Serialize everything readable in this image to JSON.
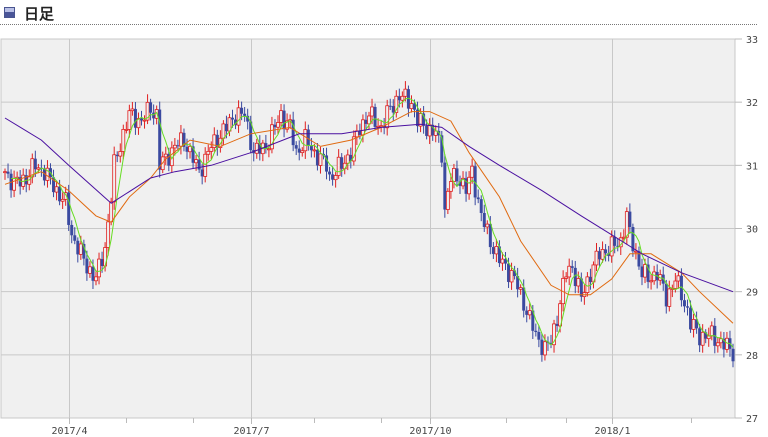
{
  "header": {
    "title": "日足",
    "icon": "chart-square-icon"
  },
  "chart_data": {
    "type": "candlestick",
    "title": "日足",
    "xlabel": "",
    "ylabel": "",
    "ylim": [
      27,
      33
    ],
    "y_ticks": [
      "27",
      "28",
      "29",
      "30",
      "31",
      "32",
      "33"
    ],
    "x_domain": [
      0,
      240
    ],
    "x_ticks": [
      {
        "label": "2017/4",
        "idx": 21
      },
      {
        "label": "2017/7",
        "idx": 81
      },
      {
        "label": "2017/10",
        "idx": 140
      },
      {
        "label": "2018/1",
        "idx": 200
      }
    ],
    "x_minor_ticks": [
      40,
      62,
      102,
      124,
      165,
      185,
      226
    ],
    "grid": true,
    "colors": {
      "up": "#e02020",
      "down": "#3a4aa0",
      "ma_short": "#66dd22",
      "ma_mid": "#e06a10",
      "ma_long": "#4a10a0",
      "grid": "#c8c8c8",
      "plot_bg": "#f0f0f0"
    },
    "close_path": [
      [
        0,
        30.9
      ],
      [
        3,
        30.7
      ],
      [
        7,
        30.8
      ],
      [
        10,
        31.0
      ],
      [
        13,
        30.9
      ],
      [
        17,
        30.6
      ],
      [
        20,
        30.4
      ],
      [
        22,
        29.9
      ],
      [
        25,
        29.6
      ],
      [
        27,
        29.4
      ],
      [
        30,
        29.2
      ],
      [
        33,
        29.7
      ],
      [
        35,
        30.5
      ],
      [
        36,
        31.0
      ],
      [
        39,
        31.5
      ],
      [
        41,
        31.8
      ],
      [
        45,
        31.7
      ],
      [
        48,
        31.9
      ],
      [
        50,
        31.8
      ],
      [
        51,
        31.0
      ],
      [
        53,
        31.1
      ],
      [
        56,
        31.3
      ],
      [
        59,
        31.4
      ],
      [
        63,
        31.0
      ],
      [
        64,
        30.9
      ],
      [
        68,
        31.3
      ],
      [
        73,
        31.6
      ],
      [
        76,
        31.8
      ],
      [
        79,
        31.8
      ],
      [
        82,
        31.2
      ],
      [
        86,
        31.3
      ],
      [
        91,
        31.8
      ],
      [
        94,
        31.6
      ],
      [
        96,
        31.2
      ],
      [
        99,
        31.4
      ],
      [
        102,
        31.2
      ],
      [
        106,
        31.0
      ],
      [
        107,
        30.8
      ],
      [
        111,
        31.0
      ],
      [
        114,
        31.2
      ],
      [
        117,
        31.6
      ],
      [
        120,
        31.8
      ],
      [
        124,
        31.6
      ],
      [
        127,
        31.9
      ],
      [
        130,
        32.1
      ],
      [
        134,
        32.0
      ],
      [
        136,
        31.7
      ],
      [
        139,
        31.6
      ],
      [
        142,
        31.5
      ],
      [
        144,
        31.2
      ],
      [
        145,
        30.3
      ],
      [
        147,
        30.8
      ],
      [
        150,
        30.8
      ],
      [
        152,
        30.6
      ],
      [
        154,
        30.9
      ],
      [
        157,
        30.2
      ],
      [
        160,
        29.8
      ],
      [
        163,
        29.5
      ],
      [
        165,
        29.4
      ],
      [
        168,
        29.2
      ],
      [
        172,
        28.7
      ],
      [
        175,
        28.3
      ],
      [
        178,
        28.1
      ],
      [
        180,
        28.2
      ],
      [
        182,
        28.6
      ],
      [
        185,
        29.3
      ],
      [
        187,
        29.4
      ],
      [
        190,
        28.9
      ],
      [
        193,
        29.3
      ],
      [
        196,
        29.6
      ],
      [
        200,
        29.7
      ],
      [
        203,
        29.8
      ],
      [
        205,
        30.2
      ],
      [
        206,
        29.9
      ],
      [
        210,
        29.3
      ],
      [
        212,
        29.2
      ],
      [
        215,
        29.3
      ],
      [
        218,
        28.9
      ],
      [
        221,
        29.2
      ],
      [
        225,
        28.7
      ],
      [
        226,
        28.5
      ],
      [
        229,
        28.3
      ],
      [
        233,
        28.3
      ],
      [
        236,
        28.2
      ],
      [
        240,
        28.05
      ]
    ],
    "ma_mid": [
      [
        0,
        30.7
      ],
      [
        12,
        30.9
      ],
      [
        21,
        30.6
      ],
      [
        30,
        30.2
      ],
      [
        35,
        30.1
      ],
      [
        41,
        30.5
      ],
      [
        48,
        30.8
      ],
      [
        53,
        31.1
      ],
      [
        61,
        31.4
      ],
      [
        71,
        31.3
      ],
      [
        81,
        31.5
      ],
      [
        94,
        31.6
      ],
      [
        104,
        31.3
      ],
      [
        114,
        31.4
      ],
      [
        124,
        31.6
      ],
      [
        134,
        31.85
      ],
      [
        140,
        31.85
      ],
      [
        147,
        31.7
      ],
      [
        153,
        31.2
      ],
      [
        163,
        30.5
      ],
      [
        170,
        29.8
      ],
      [
        180,
        29.1
      ],
      [
        186,
        28.95
      ],
      [
        193,
        28.95
      ],
      [
        200,
        29.2
      ],
      [
        206,
        29.6
      ],
      [
        213,
        29.6
      ],
      [
        223,
        29.3
      ],
      [
        229,
        29.0
      ],
      [
        240,
        28.5
      ]
    ],
    "ma_long": [
      [
        0,
        31.75
      ],
      [
        12,
        31.4
      ],
      [
        21,
        31.0
      ],
      [
        35,
        30.4
      ],
      [
        48,
        30.8
      ],
      [
        56,
        30.9
      ],
      [
        68,
        31.0
      ],
      [
        81,
        31.2
      ],
      [
        97,
        31.5
      ],
      [
        111,
        31.5
      ],
      [
        124,
        31.6
      ],
      [
        137,
        31.65
      ],
      [
        144,
        31.6
      ],
      [
        153,
        31.3
      ],
      [
        163,
        31.0
      ],
      [
        177,
        30.6
      ],
      [
        190,
        30.2
      ],
      [
        200,
        29.9
      ],
      [
        210,
        29.6
      ],
      [
        223,
        29.3
      ],
      [
        240,
        29.0
      ]
    ]
  }
}
